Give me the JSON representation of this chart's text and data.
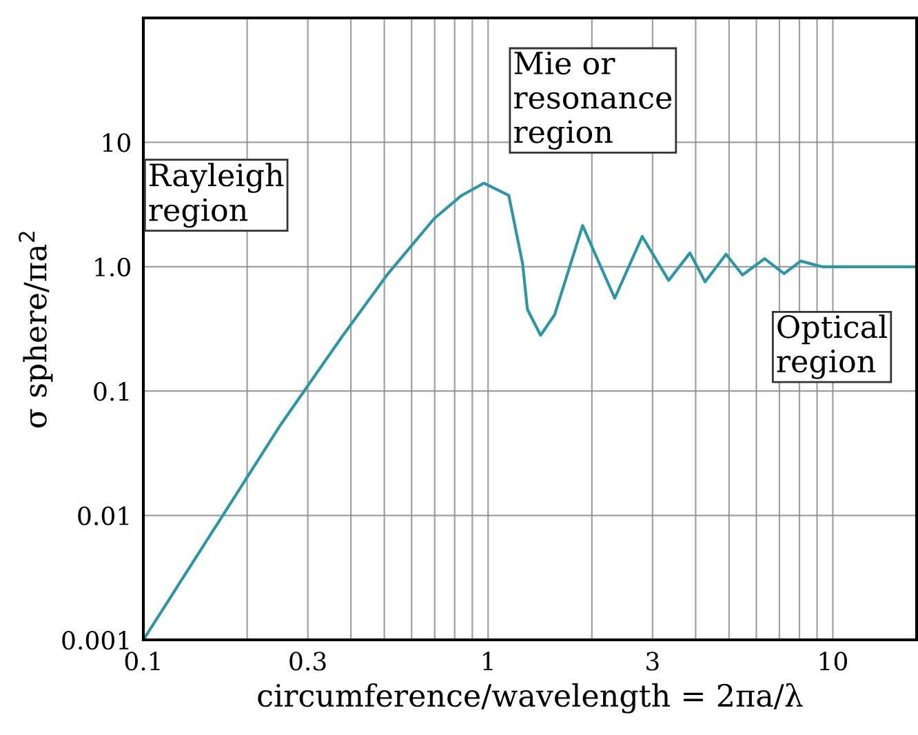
{
  "chart_data": {
    "type": "line",
    "xlabel": "circumference/wavelength = 2πa/λ",
    "ylabel": "σ sphere/πa$^{2}$",
    "log": "xy",
    "grid": true,
    "marker": "none",
    "line_style": "solid",
    "xlim": [
      0.1,
      17.5
    ],
    "ylim": [
      0.001,
      100
    ],
    "xticks": [
      0.1,
      {
        "value": 0.2,
        "label": null
      },
      0.3,
      {
        "value": 0.4,
        "label": null
      },
      {
        "value": 0.5,
        "label": null
      },
      {
        "value": 0.6,
        "label": null
      },
      {
        "value": 0.7,
        "label": null
      },
      {
        "value": 0.8,
        "label": null
      },
      {
        "value": 0.9,
        "label": null
      },
      1,
      {
        "value": 2,
        "label": null
      },
      3,
      {
        "value": 4,
        "label": null
      },
      {
        "value": 5,
        "label": null
      },
      {
        "value": 6,
        "label": null
      },
      {
        "value": 7,
        "label": null
      },
      {
        "value": 8,
        "label": null
      },
      {
        "value": 9,
        "label": null
      },
      10
    ],
    "yticks": [
      0.001,
      0.01,
      0.1,
      {
        "value": 1,
        "label": "1.0"
      },
      10
    ],
    "series": [
      {
        "color": "#2a97a8",
        "x": [
          0.1,
          0.1636,
          0.2506,
          0.377,
          0.5127,
          0.697,
          0.838,
          0.973,
          1.148,
          1.26,
          1.3,
          1.42,
          1.56,
          1.88,
          2.33,
          2.8,
          3.34,
          3.85,
          4.26,
          4.9,
          5.47,
          6.34,
          7.22,
          8.07,
          9.29,
          17.5
        ],
        "values": [
          0.001,
          0.00848,
          0.054,
          0.274,
          0.88,
          2.43,
          3.74,
          4.7,
          3.74,
          1.05,
          0.455,
          0.281,
          0.411,
          2.14,
          0.558,
          1.75,
          0.776,
          1.29,
          0.756,
          1.26,
          0.859,
          1.16,
          0.88,
          1.11,
          1.0,
          1.0
        ]
      }
    ],
    "annotations": [
      "Rayleigh\nregion",
      "Mie or\nresonance\nregion",
      "Optical\nregion"
    ]
  }
}
